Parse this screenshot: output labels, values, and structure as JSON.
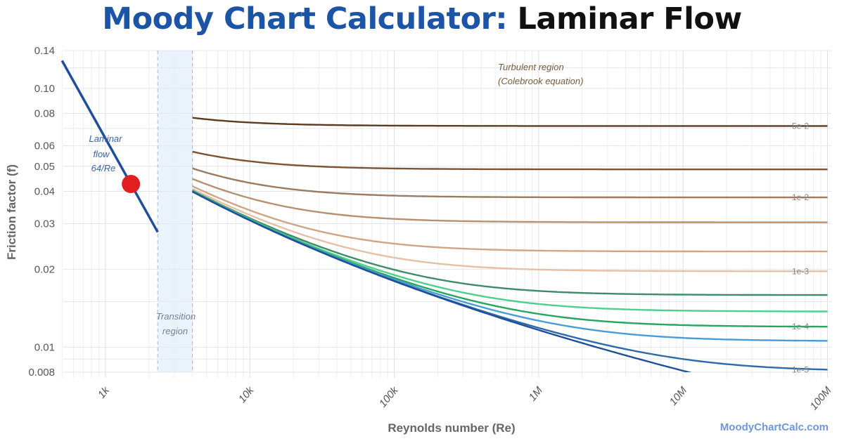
{
  "title": {
    "part1": "Moody Chart Calculator:",
    "part2": "Laminar Flow"
  },
  "brand": "MoodyChartCalc.com",
  "chart_data": {
    "type": "line",
    "title": "Moody Chart Calculator: Laminar Flow",
    "xlabel": "Reynolds number (Re)",
    "ylabel": "Friction factor (f)",
    "x_scale": "log",
    "y_scale": "log",
    "xlim": [
      500,
      100000000
    ],
    "ylim": [
      0.008,
      0.14
    ],
    "grid": true,
    "x_ticks": [
      {
        "value": 1000,
        "label": "1k"
      },
      {
        "value": 10000,
        "label": "10k"
      },
      {
        "value": 100000,
        "label": "100k"
      },
      {
        "value": 1000000,
        "label": "1M"
      },
      {
        "value": 10000000,
        "label": "10M"
      },
      {
        "value": 100000000,
        "label": "100M"
      }
    ],
    "y_ticks": [
      {
        "value": 0.14,
        "label": "0.14"
      },
      {
        "value": 0.1,
        "label": "0.10"
      },
      {
        "value": 0.08,
        "label": "0.08"
      },
      {
        "value": 0.06,
        "label": "0.06"
      },
      {
        "value": 0.05,
        "label": "0.05"
      },
      {
        "value": 0.04,
        "label": "0.04"
      },
      {
        "value": 0.03,
        "label": "0.03"
      },
      {
        "value": 0.02,
        "label": "0.02"
      },
      {
        "value": 0.01,
        "label": "0.01"
      },
      {
        "value": 0.008,
        "label": "0.008"
      }
    ],
    "laminar": {
      "re_range": [
        500,
        2300
      ],
      "equation": "64/Re",
      "color": "#1f4f9a"
    },
    "transition_region": {
      "re_range": [
        2300,
        4000
      ],
      "color": "#eaf2fb"
    },
    "turbulent_re_range": [
      4000,
      100000000
    ],
    "operating_point": {
      "re": 1500,
      "f": 0.0427,
      "color": "#e02020"
    },
    "series": [
      {
        "roughness": 0.05,
        "label": "5e-2",
        "color": "#5b3a1e"
      },
      {
        "roughness": 0.02,
        "label": "",
        "color": "#7a5434"
      },
      {
        "roughness": 0.01,
        "label": "1e-2",
        "color": "#9b7a60"
      },
      {
        "roughness": 0.005,
        "label": "",
        "color": "#b89070"
      },
      {
        "roughness": 0.002,
        "label": "",
        "color": "#cfa584"
      },
      {
        "roughness": 0.001,
        "label": "1e-3",
        "color": "#e6c0a6"
      },
      {
        "roughness": 0.0004,
        "label": "",
        "color": "#3f8a68"
      },
      {
        "roughness": 0.0002,
        "label": "",
        "color": "#4fcf8c"
      },
      {
        "roughness": 0.0001,
        "label": "1e-4",
        "color": "#27a45e"
      },
      {
        "roughness": 5e-05,
        "label": "",
        "color": "#4a9bd6"
      },
      {
        "roughness": 1e-05,
        "label": "1e-5",
        "color": "#2c6aa8"
      },
      {
        "roughness": 0,
        "label": "",
        "color": "#1f4f9a"
      }
    ],
    "annotations": {
      "laminar": [
        "Laminar",
        "flow",
        "64/Re"
      ],
      "transition": [
        "Transition",
        "region"
      ],
      "turbulent": [
        "Turbulent region",
        "(Colebrook equation)"
      ]
    }
  }
}
